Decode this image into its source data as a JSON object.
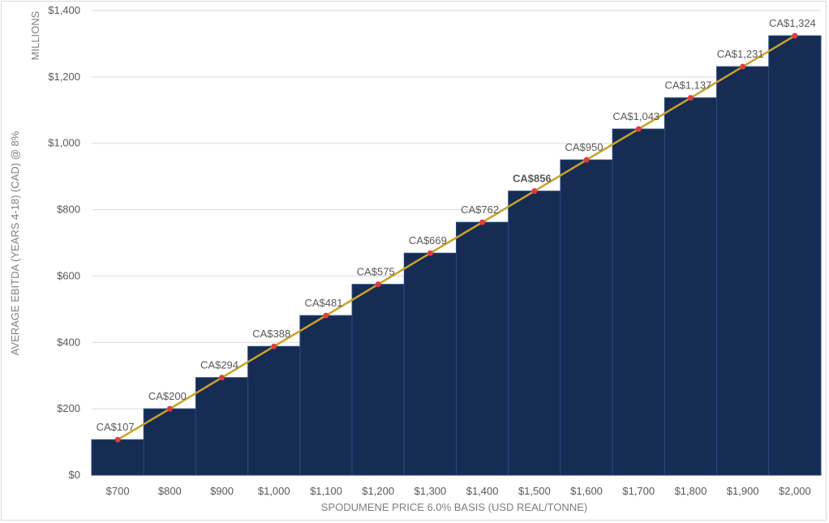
{
  "chart_data": {
    "type": "bar",
    "categories": [
      "$700",
      "$800",
      "$900",
      "$1,000",
      "$1,100",
      "$1,200",
      "$1,300",
      "$1,400",
      "$1,500",
      "$1,600",
      "$1,700",
      "$1,800",
      "$1,900",
      "$2,000"
    ],
    "values": [
      107,
      200,
      294,
      388,
      481,
      575,
      669,
      762,
      856,
      950,
      1043,
      1137,
      1231,
      1324
    ],
    "data_labels": [
      "CA$107",
      "CA$200",
      "CA$294",
      "CA$388",
      "CA$481",
      "CA$575",
      "CA$669",
      "CA$762",
      "CA$856",
      "CA$950",
      "CA$1,043",
      "CA$1,137",
      "CA$1,231",
      "CA$1,324"
    ],
    "highlight_index": 8,
    "overlay": {
      "type": "line",
      "values": [
        107,
        200,
        294,
        388,
        481,
        575,
        669,
        762,
        856,
        950,
        1043,
        1137,
        1231,
        1324
      ]
    },
    "title": "",
    "xlabel": "SPODUMENE PRICE 6.0% BASIS (USD REAL/TONNE)",
    "ylabel": "AVERAGE EBITDA (YEARS 4-18) (CAD) @ 8%",
    "y_unit_label": "MILLIONS",
    "ylim": [
      0,
      1400
    ],
    "yticks": [
      0,
      200,
      400,
      600,
      800,
      1000,
      1200,
      1400
    ],
    "ytick_labels": [
      "$0",
      "$200",
      "$400",
      "$600",
      "$800",
      "$1,000",
      "$1,200",
      "$1,400"
    ],
    "grid": true,
    "legend": "none",
    "colors": {
      "bar": "#162c53",
      "bar_edge": "#2b4a7e",
      "line": "#c9a227",
      "marker": "#e03c3c",
      "highlight_label": "#c9a227",
      "label": "#595959",
      "grid": "#d9d9d9"
    }
  }
}
